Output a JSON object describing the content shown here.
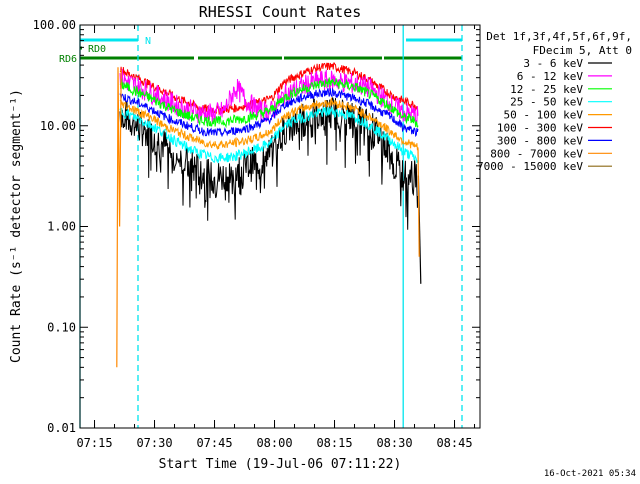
{
  "chart_data": {
    "type": "line",
    "title": "RHESSI Count Rates",
    "xlabel": "Start Time (19-Jul-06 07:11:22)",
    "ylabel": "Count Rate (s⁻¹ detector segment⁻¹)",
    "yscale": "log",
    "ylim": [
      0.01,
      100
    ],
    "xlim_minutes": [
      0,
      100
    ],
    "xtick_labels": [
      "07:15",
      "07:30",
      "07:45",
      "08:00",
      "08:15",
      "08:30",
      "08:45"
    ],
    "xtick_minutes": [
      3.63,
      18.63,
      33.63,
      48.63,
      63.63,
      78.63,
      93.63
    ],
    "ytick_labels": [
      "0.01",
      "0.10",
      "1.00",
      "10.00",
      "100.00"
    ],
    "ytick_values": [
      0.01,
      0.1,
      1,
      10,
      100
    ],
    "timestamp": "16-Oct-2021 05:34",
    "legend": {
      "position": "top-right",
      "header": [
        "Det 1f,3f,4f,5f,6f,9f,",
        "FDecim 5, Att 0"
      ],
      "entries": [
        {
          "name": "3 - 6 keV",
          "color": "#000000"
        },
        {
          "name": "6 - 12 keV",
          "color": "#ff00ff"
        },
        {
          "name": "12 - 25 keV",
          "color": "#00ff00"
        },
        {
          "name": "25 - 50 keV",
          "color": "#00ffff"
        },
        {
          "name": "50 - 100 keV",
          "color": "#ff9900"
        },
        {
          "name": "100 - 300 keV",
          "color": "#ff0000"
        },
        {
          "name": "300 - 800 keV",
          "color": "#0000ff"
        },
        {
          "name": "800 - 7000 keV",
          "color": "#ff8800"
        },
        {
          "name": "7000 - 15000 keV",
          "color": "#8b6914"
        }
      ]
    },
    "flags": [
      {
        "label": "N",
        "color": "#00e5ee",
        "segments": [
          [
            0,
            14.5
          ],
          [
            81.5,
            95.5
          ]
        ]
      },
      {
        "label": "RD0",
        "color": "#008000",
        "segments": [
          [
            0,
            0.5
          ]
        ]
      },
      {
        "label": "RD6",
        "color": "#008000",
        "segments": [
          [
            0,
            28.5
          ],
          [
            29.5,
            50.5
          ],
          [
            51,
            75.5
          ],
          [
            76,
            95.5
          ]
        ]
      }
    ],
    "vertical_lines": [
      {
        "minute": 0,
        "color": "#00e5ee",
        "style": "solid"
      },
      {
        "minute": 14.5,
        "color": "#00e5ee",
        "style": "dashed"
      },
      {
        "minute": 80.8,
        "color": "#00e5ee",
        "style": "solid"
      },
      {
        "minute": 95.5,
        "color": "#00e5ee",
        "style": "dashed"
      }
    ],
    "x_minutes": [
      10,
      12,
      15,
      18,
      21,
      24,
      27,
      30,
      33,
      36,
      39,
      42,
      45,
      48,
      51,
      54,
      57,
      60,
      63,
      66,
      69,
      72,
      75,
      78,
      81,
      83,
      84.5
    ],
    "series": [
      {
        "name": "3 - 6 keV",
        "color": "#000000",
        "noise": 0.4,
        "values": [
          14,
          12,
          9.5,
          8,
          6.5,
          5,
          4.2,
          3.5,
          3,
          3.2,
          3.5,
          4,
          4.5,
          5.5,
          9,
          11,
          12,
          13,
          13.5,
          13,
          12,
          10,
          8,
          5,
          3.2,
          3.3,
          3.2
        ]
      },
      {
        "name": "100 - 300 keV",
        "color": "#ff0000",
        "noise": 0.1,
        "values": [
          37,
          33,
          29,
          25,
          22,
          19,
          17,
          15,
          14.5,
          14.5,
          15,
          16,
          17,
          19,
          27,
          31,
          35,
          38,
          39,
          36,
          33,
          29,
          24,
          20,
          17.5,
          16.5,
          15.5
        ]
      },
      {
        "name": "6 - 12 keV",
        "color": "#ff00ff",
        "noise": 0.25,
        "values": [
          30,
          27,
          24,
          21,
          18.5,
          16,
          14.5,
          13.5,
          13,
          14,
          24,
          17,
          14,
          14,
          20,
          23,
          26,
          28,
          28,
          27,
          26,
          24,
          20,
          16,
          13.5,
          13,
          12.5
        ]
      },
      {
        "name": "12 - 25 keV",
        "color": "#00ff00",
        "noise": 0.12,
        "values": [
          26,
          24,
          21,
          18.5,
          16,
          14,
          12.5,
          11.5,
          11,
          11,
          11.5,
          12,
          13,
          14.5,
          19,
          22,
          24,
          26,
          27,
          25.5,
          24,
          21,
          18,
          15,
          12,
          11.5,
          10.5
        ]
      },
      {
        "name": "300 - 800 keV",
        "color": "#0000ff",
        "noise": 0.1,
        "values": [
          20,
          18.5,
          16.5,
          14.5,
          12.5,
          11,
          10,
          9,
          8.5,
          8.5,
          9,
          9.5,
          10.5,
          12,
          16,
          18,
          20,
          21,
          21.5,
          20,
          18.5,
          16.5,
          14,
          12,
          9.5,
          9,
          8.5
        ]
      },
      {
        "name": "25 - 50 keV",
        "color": "#00ffff",
        "noise": 0.12,
        "values": [
          14,
          13,
          11.5,
          10,
          8.5,
          7,
          6,
          5.3,
          4.8,
          4.8,
          5,
          5.5,
          6,
          7,
          10,
          11.5,
          12.5,
          13.5,
          14,
          13,
          12,
          10.5,
          8.5,
          7,
          5.5,
          5,
          4.5
        ]
      },
      {
        "name": "50 - 100 keV",
        "color": "#ff9900",
        "noise": 0.1,
        "values": [
          17,
          15.5,
          13.5,
          12,
          10,
          8.8,
          7.8,
          7,
          6.5,
          6.5,
          6.8,
          7.2,
          7.8,
          9,
          12.5,
          14,
          15.5,
          16.5,
          17,
          16,
          14.5,
          12.5,
          10.5,
          8.5,
          7,
          6.5,
          6
        ]
      }
    ],
    "drop_lines": [
      {
        "color": "#ff8800",
        "x": [
          9.2,
          9.5,
          9.9,
          10.3
        ],
        "values": [
          0.04,
          38,
          1.0,
          36
        ]
      },
      {
        "color": "#000000",
        "x": [
          84.6,
          85.2
        ],
        "values": [
          3.2,
          0.27
        ]
      },
      {
        "color": "#ff8800",
        "x": [
          84.5,
          84.8
        ],
        "values": [
          6,
          0.5
        ]
      }
    ]
  }
}
